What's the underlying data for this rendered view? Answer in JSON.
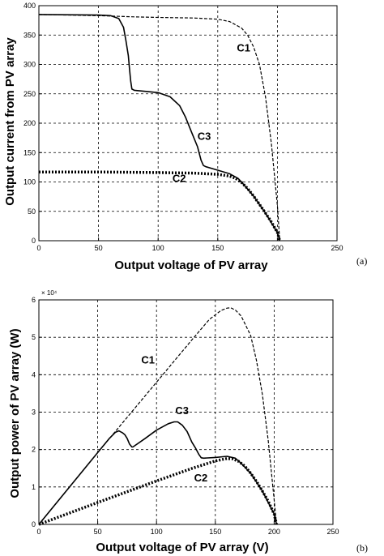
{
  "chart_data": [
    {
      "type": "line",
      "panel_label": "(a)",
      "xlabel": "Output voltage of PV array",
      "ylabel": "Output  current from PV array",
      "xlim": [
        0,
        250
      ],
      "ylim": [
        0,
        400
      ],
      "xticks": [
        "0",
        "50",
        "100",
        "150",
        "200",
        "250"
      ],
      "yticks": [
        "0",
        "50",
        "100",
        "150",
        "200",
        "250",
        "300",
        "350",
        "400"
      ],
      "grid": true,
      "series": [
        {
          "name": "C1",
          "style": "dashed",
          "x": [
            0,
            50,
            80,
            100,
            130,
            150,
            160,
            170,
            175,
            180,
            185,
            190,
            195,
            200,
            202
          ],
          "y": [
            385,
            383,
            381,
            380,
            379,
            377,
            373,
            362,
            350,
            330,
            300,
            245,
            165,
            60,
            0
          ]
        },
        {
          "name": "C2",
          "style": "dotted",
          "x": [
            0,
            50,
            100,
            130,
            150,
            160,
            165,
            170,
            175,
            180,
            185,
            190,
            195,
            200,
            202
          ],
          "y": [
            117,
            117,
            116,
            115,
            113,
            110,
            106,
            99,
            89,
            76,
            62,
            47,
            32,
            14,
            0
          ]
        },
        {
          "name": "C3",
          "style": "solid",
          "x": [
            0,
            50,
            60,
            67,
            71,
            73,
            75,
            76,
            77,
            78,
            80,
            90,
            100,
            110,
            118,
            123,
            128,
            133,
            136,
            138,
            140,
            150,
            160,
            167,
            172,
            180,
            190,
            200,
            202
          ],
          "y": [
            385,
            384,
            383,
            378,
            363,
            340,
            315,
            292,
            272,
            258,
            256,
            254,
            252,
            245,
            230,
            210,
            185,
            160,
            137,
            128,
            126,
            120,
            114,
            106,
            95,
            76,
            47,
            14,
            0
          ]
        }
      ],
      "annotations": [
        {
          "text": "C1",
          "x": 166,
          "y": 322
        },
        {
          "text": "C3",
          "x": 133,
          "y": 172
        },
        {
          "text": "C2",
          "x": 112,
          "y": 100
        }
      ]
    },
    {
      "type": "line",
      "panel_label": "(b)",
      "xlabel": "Output voltage of PV array (V)",
      "ylabel": "Output power of PV array (W)",
      "y_multiplier": "× 10⁴",
      "xlim": [
        0,
        250
      ],
      "ylim": [
        0,
        60000
      ],
      "xticks": [
        "0",
        "50",
        "100",
        "150",
        "200",
        "250"
      ],
      "yticks": [
        "0",
        "1",
        "2",
        "3",
        "4",
        "5",
        "6"
      ],
      "grid": true,
      "series": [
        {
          "name": "C1",
          "style": "dashed",
          "x": [
            0,
            50,
            100,
            130,
            145,
            155,
            160,
            163,
            167,
            172,
            180,
            185,
            190,
            195,
            200,
            202
          ],
          "y": [
            0,
            19200,
            38000,
            49300,
            54800,
            57200,
            57800,
            57900,
            57300,
            55700,
            50500,
            43800,
            34700,
            22400,
            6600,
            0
          ]
        },
        {
          "name": "C2",
          "style": "dotted",
          "x": [
            0,
            50,
            100,
            130,
            150,
            160,
            165,
            170,
            175,
            180,
            185,
            190,
            195,
            200,
            202
          ],
          "y": [
            0,
            5850,
            11600,
            14950,
            16950,
            17600,
            17500,
            16800,
            15600,
            13700,
            11500,
            8900,
            6200,
            2800,
            0
          ]
        },
        {
          "name": "C3",
          "style": "solid",
          "x": [
            0,
            50,
            60,
            65,
            68,
            71,
            73,
            75,
            77,
            79,
            80,
            90,
            100,
            110,
            115,
            118,
            122,
            126,
            130,
            133,
            136,
            138,
            140,
            150,
            160,
            167,
            172,
            180,
            190,
            200,
            202
          ],
          "y": [
            0,
            19200,
            23000,
            24600,
            25000,
            24500,
            24000,
            23000,
            21500,
            20700,
            20700,
            22900,
            25200,
            26900,
            27400,
            27400,
            26500,
            24800,
            22000,
            20500,
            18700,
            17800,
            17700,
            17900,
            18200,
            17700,
            16300,
            13700,
            8900,
            2800,
            0
          ]
        }
      ],
      "annotations": [
        {
          "text": "C1",
          "x": 87,
          "y": 43000
        },
        {
          "text": "C3",
          "x": 116,
          "y": 29500
        },
        {
          "text": "C2",
          "x": 132,
          "y": 11500
        }
      ]
    }
  ]
}
